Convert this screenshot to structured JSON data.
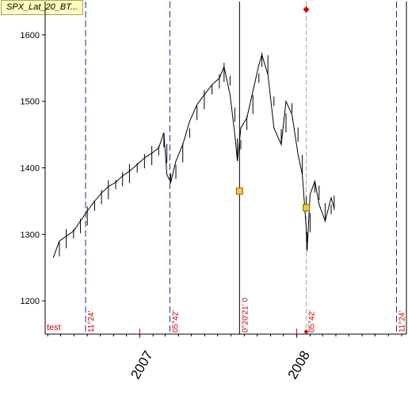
{
  "window": {
    "tab_title": "SPX_Lat_20_BT..."
  },
  "chart_data": {
    "type": "line",
    "title": "",
    "xlabel": "",
    "ylabel": "",
    "ylim": [
      1150,
      1650
    ],
    "xlim": [
      "2006-05-26",
      "2008-09-12"
    ],
    "grid": false,
    "yticks": [
      1200,
      1300,
      1400,
      1500,
      1600
    ],
    "xticks": [
      {
        "label": "2007",
        "date": "2007-01-01"
      },
      {
        "label": "2008",
        "date": "2008-01-01"
      }
    ],
    "series": [
      {
        "color": "#000000",
        "points": [
          [
            "2006-06-14",
            1265
          ],
          [
            "2006-06-28",
            1290
          ],
          [
            "2006-07-14",
            1297
          ],
          [
            "2006-07-31",
            1305
          ],
          [
            "2006-08-16",
            1320
          ],
          [
            "2006-09-01",
            1335
          ],
          [
            "2006-09-18",
            1350
          ],
          [
            "2006-10-04",
            1362
          ],
          [
            "2006-10-20",
            1372
          ],
          [
            "2006-11-06",
            1378
          ],
          [
            "2006-11-22",
            1388
          ],
          [
            "2006-12-08",
            1395
          ],
          [
            "2006-12-26",
            1405
          ],
          [
            "2007-01-12",
            1415
          ],
          [
            "2007-01-29",
            1422
          ],
          [
            "2007-02-14",
            1430
          ],
          [
            "2007-02-26",
            1453
          ],
          [
            "2007-03-05",
            1390
          ],
          [
            "2007-03-14",
            1378
          ],
          [
            "2007-03-26",
            1410
          ],
          [
            "2007-04-11",
            1435
          ],
          [
            "2007-04-27",
            1470
          ],
          [
            "2007-05-14",
            1495
          ],
          [
            "2007-05-31",
            1510
          ],
          [
            "2007-06-18",
            1525
          ],
          [
            "2007-07-05",
            1535
          ],
          [
            "2007-07-16",
            1552
          ],
          [
            "2007-07-30",
            1510
          ],
          [
            "2007-08-10",
            1450
          ],
          [
            "2007-08-16",
            1410
          ],
          [
            "2007-08-24",
            1460
          ],
          [
            "2007-09-07",
            1475
          ],
          [
            "2007-09-21",
            1515
          ],
          [
            "2007-10-05",
            1555
          ],
          [
            "2007-10-12",
            1570
          ],
          [
            "2007-10-26",
            1540
          ],
          [
            "2007-11-09",
            1460
          ],
          [
            "2007-11-26",
            1435
          ],
          [
            "2007-12-07",
            1500
          ],
          [
            "2007-12-21",
            1480
          ],
          [
            "2008-01-04",
            1420
          ],
          [
            "2008-01-14",
            1390
          ],
          [
            "2008-01-23",
            1310
          ],
          [
            "2008-01-25",
            1275
          ],
          [
            "2008-02-01",
            1360
          ],
          [
            "2008-02-12",
            1380
          ],
          [
            "2008-02-22",
            1345
          ],
          [
            "2008-03-07",
            1320
          ],
          [
            "2008-03-21",
            1355
          ],
          [
            "2008-03-28",
            1340
          ]
        ]
      }
    ],
    "annotations": {
      "event_lines": [
        {
          "date": "2006-08-28",
          "label": "11°24'"
        },
        {
          "date": "2007-03-12",
          "label": "05°42'"
        },
        {
          "date": "2007-08-21",
          "label": "0°20'21' 0"
        },
        {
          "date": "2008-01-23",
          "label": "05°42'"
        },
        {
          "date": "2008-08-20",
          "label": "11°24'"
        }
      ],
      "markers": [
        {
          "date": "2007-08-21",
          "value": 1365,
          "shape": "square",
          "color": "#f5c542"
        },
        {
          "date": "2008-01-23",
          "value": 1340,
          "shape": "square",
          "color": "#f5c542"
        }
      ],
      "test_label": "test"
    },
    "colors": {
      "event_line": "#1c2a8c",
      "event_label": "#cc0000",
      "red_marker": "#e00000",
      "grey_line": "#aaaaaa"
    }
  }
}
